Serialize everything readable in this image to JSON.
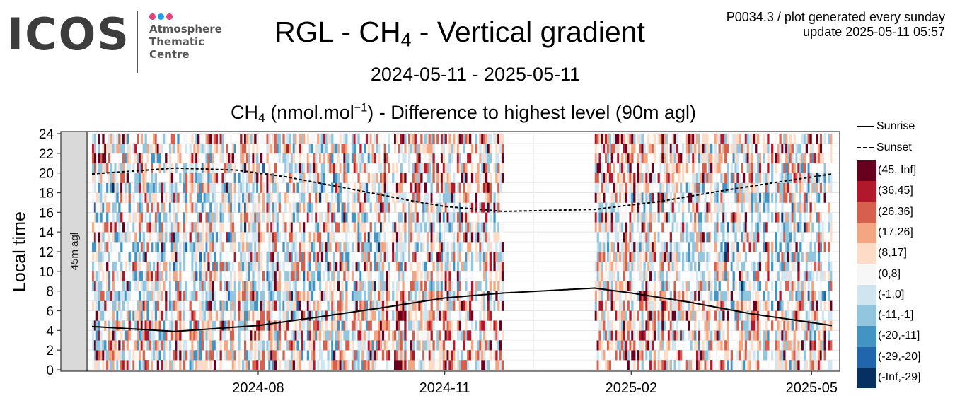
{
  "logo": {
    "wordmark": "ICOS",
    "line1": "Atmosphere",
    "line2": "Thematic",
    "line3": "Centre",
    "dot_colors": [
      "#e83e7b",
      "#1e9be9",
      "#e83e7b"
    ]
  },
  "header": {
    "title_prefix": "RGL - CH",
    "title_sub": "4",
    "title_suffix": " - Vertical gradient",
    "date_range": "2024-05-11 - 2025-05-11",
    "note_line1": "P0034.3 / plot generated every sunday",
    "note_line2": "update  2025-05-11 05:57"
  },
  "chart_data": {
    "type": "heatmap",
    "title": {
      "gas": "CH",
      "gas_sub": "4",
      "unit_open": " (nmol.mol",
      "unit_exp": "−1",
      "unit_close": ") - Difference to highest level (90m agl)"
    },
    "ylabel": "Local time",
    "facet_label": "45m agl",
    "x_range": [
      "2024-05-11",
      "2025-05-11"
    ],
    "x_ticks": [
      {
        "date": "2024-08-01",
        "label": "2024-08"
      },
      {
        "date": "2024-11-01",
        "label": "2024-11"
      },
      {
        "date": "2025-02-01",
        "label": "2025-02"
      },
      {
        "date": "2025-05-01",
        "label": "2025-05"
      }
    ],
    "y_range": [
      0,
      24
    ],
    "y_ticks": [
      0,
      2,
      4,
      6,
      8,
      10,
      12,
      14,
      16,
      18,
      20,
      22,
      24
    ],
    "data_gap": [
      "2024-11-30",
      "2025-01-14"
    ],
    "sunrise": [
      {
        "date": "2024-05-11",
        "hour": 4.4
      },
      {
        "date": "2024-06-21",
        "hour": 3.9
      },
      {
        "date": "2024-08-01",
        "hour": 4.5
      },
      {
        "date": "2024-09-01",
        "hour": 5.4
      },
      {
        "date": "2024-10-01",
        "hour": 6.3
      },
      {
        "date": "2024-11-01",
        "hour": 7.3
      },
      {
        "date": "2024-11-30",
        "hour": 7.8
      },
      {
        "date": "2025-01-14",
        "hour": 8.3
      },
      {
        "date": "2025-02-01",
        "hour": 7.8
      },
      {
        "date": "2025-03-01",
        "hour": 6.9
      },
      {
        "date": "2025-04-01",
        "hour": 5.7
      },
      {
        "date": "2025-05-11",
        "hour": 4.5
      }
    ],
    "sunset": [
      {
        "date": "2024-05-11",
        "hour": 19.9
      },
      {
        "date": "2024-06-21",
        "hour": 20.5
      },
      {
        "date": "2024-07-21",
        "hour": 20.3
      },
      {
        "date": "2024-08-15",
        "hour": 19.6
      },
      {
        "date": "2024-09-15",
        "hour": 18.4
      },
      {
        "date": "2024-10-15",
        "hour": 17.2
      },
      {
        "date": "2024-11-01",
        "hour": 16.6
      },
      {
        "date": "2024-11-30",
        "hour": 16.1
      },
      {
        "date": "2025-01-14",
        "hour": 16.3
      },
      {
        "date": "2025-02-15",
        "hour": 17.1
      },
      {
        "date": "2025-03-15",
        "hour": 18.1
      },
      {
        "date": "2025-04-15",
        "hour": 19.1
      },
      {
        "date": "2025-05-11",
        "hour": 19.9
      }
    ],
    "legend": {
      "sunrise_label": "Sunrise",
      "sunset_label": "Sunset",
      "bins": [
        {
          "label": "(45, Inf]",
          "color": "#67001f"
        },
        {
          "label": "(36,45]",
          "color": "#b2182b"
        },
        {
          "label": "(26,36]",
          "color": "#d6604d"
        },
        {
          "label": "(17,26]",
          "color": "#f4a582"
        },
        {
          "label": "(8,17]",
          "color": "#fddbc7"
        },
        {
          "label": "(0,8]",
          "color": "#f7f7f7"
        },
        {
          "label": "(-1,0]",
          "color": "#d1e5f0"
        },
        {
          "label": "(-11,-1]",
          "color": "#92c5de"
        },
        {
          "label": "(-20,-11]",
          "color": "#4393c3"
        },
        {
          "label": "(-29,-20]",
          "color": "#2166ac"
        },
        {
          "label": "(-Inf,-29]",
          "color": "#053061"
        }
      ]
    }
  }
}
